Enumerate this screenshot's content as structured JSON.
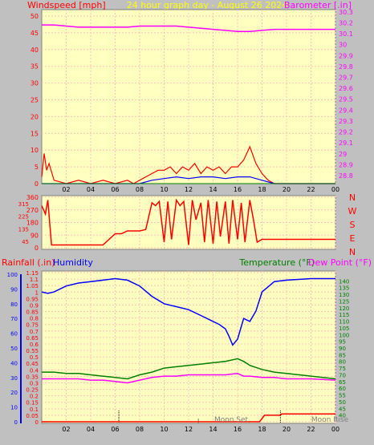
{
  "header": {
    "left_label": "Windspeed [mph]",
    "center_label": "24 hour graph day - August 26 2024",
    "right_label": "Barometer [.in]"
  },
  "direction_labels": [
    "N",
    "W",
    "S",
    "E",
    "N"
  ],
  "bottom_header": {
    "rain_label": "Rainfall (.in)",
    "humidity_label": "Humidity",
    "temp_label": "Temperature (°F)",
    "dew_label": "Dew Point (°F)"
  },
  "moon": {
    "set_label": "Moon Set",
    "rise_label": "Moon Rise"
  },
  "colors": {
    "wind": "#ff0000",
    "gust": "#ff0000",
    "wind_avg": "#0000ff",
    "wind_low": "#008000",
    "barometer": "#ff00ff",
    "direction": "#ff0000",
    "humidity": "#0000ff",
    "temperature": "#008000",
    "dewpoint": "#ff00ff",
    "rain": "#ff0000",
    "plot_bg": "#ffffc0",
    "grid": "#ffc0c0"
  },
  "chart_data": [
    {
      "type": "line",
      "name_ref": "wind-barometer",
      "x_ticks": [
        "02",
        "04",
        "06",
        "08",
        "10",
        "12",
        "14",
        "16",
        "18",
        "20",
        "22",
        "00"
      ],
      "xlim": [
        0,
        24
      ],
      "y_left_ticks": [
        "0",
        "5",
        "10",
        "15",
        "20",
        "25",
        "30",
        "35",
        "40",
        "45",
        "50"
      ],
      "ylim_left": [
        0,
        50
      ],
      "y_right_ticks": [
        "28.8",
        "28.9",
        "29",
        "29.1",
        "29.2",
        "29.3",
        "29.4",
        "29.5",
        "29.6",
        "29.7",
        "29.8",
        "29.9",
        "30",
        "30.1",
        "30.2",
        "30.3"
      ],
      "ylim_right": [
        28.8,
        30.35
      ],
      "barometer": {
        "x": [
          0,
          1,
          2,
          3,
          4,
          5,
          6,
          7,
          8,
          9,
          10,
          11,
          12,
          13,
          14,
          15,
          16,
          17,
          18,
          19,
          20,
          21,
          22,
          23,
          24
        ],
        "y": [
          30.18,
          30.18,
          30.17,
          30.16,
          30.16,
          30.16,
          30.16,
          30.16,
          30.17,
          30.17,
          30.17,
          30.17,
          30.16,
          30.15,
          30.14,
          30.13,
          30.12,
          30.12,
          30.13,
          30.14,
          30.14,
          30.14,
          30.14,
          30.14,
          30.14
        ]
      },
      "wind_speed": {
        "x": [
          0,
          0.2,
          0.4,
          0.6,
          1,
          2,
          3,
          4,
          5,
          6,
          7,
          7.5,
          8,
          8.5,
          9,
          9.5,
          10,
          10.5,
          11,
          11.5,
          12,
          12.5,
          13,
          13.5,
          14,
          14.5,
          15,
          15.5,
          16,
          16.5,
          17,
          17.5,
          18,
          18.5,
          19,
          20,
          22,
          24
        ],
        "y": [
          2,
          9,
          4,
          6,
          1,
          0,
          1,
          0,
          1,
          0,
          1,
          0,
          1,
          2,
          3,
          4,
          4,
          5,
          3,
          5,
          4,
          6,
          3,
          5,
          4,
          5,
          3,
          5,
          5,
          7,
          11,
          6,
          3,
          1,
          0,
          0,
          0,
          0
        ]
      },
      "wind_avg": {
        "x": [
          0,
          8,
          9,
          10,
          11,
          12,
          13,
          14,
          15,
          16,
          17,
          18,
          19,
          24
        ],
        "y": [
          0,
          0,
          1,
          1.5,
          2,
          1.5,
          2,
          2,
          1.5,
          2,
          2,
          1,
          0,
          0
        ]
      }
    },
    {
      "type": "line",
      "name_ref": "wind-direction",
      "x_ticks": [
        "02",
        "04",
        "06",
        "08",
        "10",
        "12",
        "14",
        "16",
        "18",
        "20",
        "22",
        "00"
      ],
      "xlim": [
        0,
        24
      ],
      "y_ticks": [
        "0",
        "90",
        "180",
        "270",
        "360"
      ],
      "y_minor_ticks": [
        "45",
        "135",
        "225",
        "315"
      ],
      "ylim": [
        0,
        360
      ],
      "direction": {
        "x": [
          0,
          0.3,
          0.5,
          0.8,
          1,
          2,
          3,
          4,
          5,
          6,
          6.5,
          7,
          8,
          8.5,
          9,
          9.3,
          9.6,
          10,
          10.3,
          10.6,
          11,
          11.3,
          11.6,
          12,
          12.3,
          12.6,
          13,
          13.3,
          13.6,
          14,
          14.3,
          14.6,
          15,
          15.3,
          15.6,
          16,
          16.3,
          16.6,
          17,
          17.3,
          17.6,
          18,
          18.5,
          19,
          20,
          22,
          24
        ],
        "y": [
          300,
          240,
          340,
          20,
          20,
          20,
          20,
          20,
          20,
          100,
          100,
          120,
          120,
          130,
          320,
          300,
          330,
          40,
          330,
          60,
          340,
          300,
          330,
          20,
          340,
          200,
          320,
          40,
          340,
          30,
          330,
          80,
          330,
          30,
          340,
          60,
          320,
          40,
          340,
          200,
          40,
          60,
          60,
          60,
          60,
          60,
          60
        ]
      }
    },
    {
      "type": "line",
      "name_ref": "temp-humidity-rain",
      "x_ticks": [
        "02",
        "04",
        "06",
        "08",
        "10",
        "12",
        "14",
        "16",
        "18",
        "20",
        "22",
        "00"
      ],
      "xlim": [
        0,
        24
      ],
      "rain_ticks": [
        "0",
        "0.05",
        "0.1",
        "0.15",
        "0.2",
        "0.25",
        "0.3",
        "0.35",
        "0.4",
        "0.45",
        "0.5",
        "0.55",
        "0.6",
        "0.65",
        "0.7",
        "0.75",
        "0.8",
        "0.85",
        "0.9",
        "0.95",
        "1",
        "1.05",
        "1.1",
        "1.15"
      ],
      "rain_lim": [
        0,
        1.15
      ],
      "humidity_ticks": [
        "0",
        "10",
        "20",
        "30",
        "40",
        "50",
        "60",
        "70",
        "80",
        "90",
        "100"
      ],
      "humidity_lim": [
        0,
        100
      ],
      "temp_ticks": [
        "40",
        "45",
        "50",
        "55",
        "60",
        "65",
        "70",
        "75",
        "80",
        "85",
        "90",
        "95",
        "100",
        "105",
        "110",
        "115",
        "120",
        "125",
        "130",
        "135",
        "140"
      ],
      "temp_lim": [
        35,
        145
      ],
      "humidity": {
        "x": [
          0,
          0.5,
          1,
          2,
          3,
          4,
          5,
          6,
          7,
          8,
          9,
          10,
          11,
          12,
          13,
          14,
          14.5,
          15,
          15.3,
          15.6,
          16,
          16.5,
          17,
          17.5,
          18,
          19,
          20,
          22,
          24
        ],
        "y": [
          88,
          87,
          88,
          92,
          94,
          95,
          96,
          97,
          96,
          92,
          85,
          80,
          78,
          76,
          72,
          68,
          66,
          63,
          58,
          52,
          56,
          70,
          68,
          75,
          88,
          95,
          96,
          97,
          97
        ]
      },
      "temperature": {
        "x": [
          0,
          1,
          2,
          3,
          4,
          5,
          6,
          7,
          8,
          9,
          10,
          11,
          12,
          13,
          14,
          15,
          16,
          16.5,
          17,
          18,
          19,
          20,
          22,
          24
        ],
        "y": [
          72,
          72,
          71,
          71,
          70,
          69,
          68,
          67,
          70,
          72,
          75,
          76,
          77,
          78,
          79,
          80,
          82,
          80,
          77,
          74,
          72,
          71,
          69,
          67
        ]
      },
      "dewpoint": {
        "x": [
          0,
          1,
          2,
          3,
          4,
          5,
          6,
          7,
          8,
          9,
          10,
          11,
          12,
          13,
          14,
          15,
          16,
          16.5,
          17,
          18,
          19,
          20,
          22,
          24
        ],
        "y": [
          67,
          67,
          67,
          67,
          66,
          66,
          65,
          64,
          66,
          68,
          69,
          69,
          70,
          70,
          70,
          70,
          71,
          69,
          69,
          68,
          68,
          67,
          67,
          66
        ]
      },
      "rain": {
        "x": [
          0,
          17.8,
          18.2,
          19.5,
          19.6,
          24
        ],
        "y": [
          0,
          0,
          0.05,
          0.05,
          0.06,
          0.06
        ]
      }
    }
  ]
}
